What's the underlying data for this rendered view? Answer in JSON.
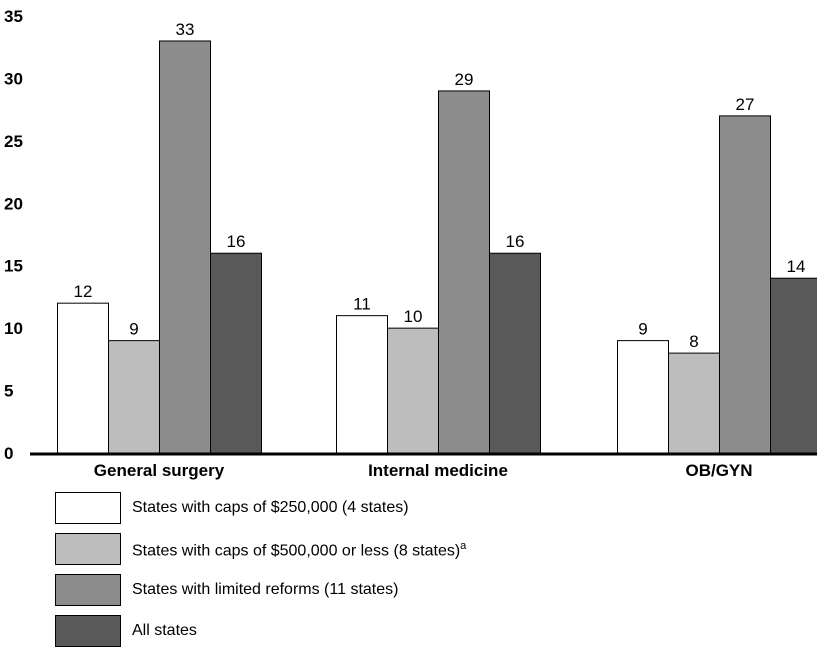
{
  "chart_data": {
    "type": "bar",
    "categories": [
      "General surgery",
      "Internal medicine",
      "OB/GYN"
    ],
    "series": [
      {
        "name": "States with caps of $250,000 (4 states)",
        "values": [
          12,
          11,
          9
        ],
        "color": "#ffffff"
      },
      {
        "name": "States with caps of $500,000 or less (8 states)",
        "footnote": "a",
        "values": [
          9,
          10,
          8
        ],
        "color": "#bdbdbd"
      },
      {
        "name": "States with limited reforms (11 states)",
        "values": [
          33,
          29,
          27
        ],
        "color": "#8c8c8c"
      },
      {
        "name": "All states",
        "values": [
          16,
          16,
          14
        ],
        "color": "#595959"
      }
    ],
    "ylim": [
      0,
      35
    ],
    "yticks": [
      "0",
      "5",
      "10",
      "15",
      "20",
      "25",
      "30",
      "35"
    ],
    "title": "",
    "xlabel": "",
    "ylabel": "",
    "grid": false,
    "legend_position": "bottom"
  }
}
